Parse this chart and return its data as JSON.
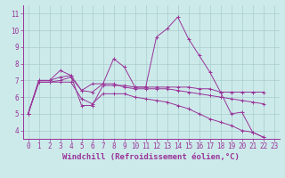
{
  "xlabel": "Windchill (Refroidissement éolien,°C)",
  "background_color": "#cceaea",
  "line_color": "#993399",
  "xlim": [
    -0.5,
    23.5
  ],
  "ylim": [
    3.5,
    11.5
  ],
  "xticks": [
    0,
    1,
    2,
    3,
    4,
    5,
    6,
    7,
    8,
    9,
    10,
    11,
    12,
    13,
    14,
    15,
    16,
    17,
    18,
    19,
    20,
    21,
    22,
    23
  ],
  "yticks": [
    4,
    5,
    6,
    7,
    8,
    9,
    10,
    11
  ],
  "series": [
    [
      5.0,
      7.0,
      7.0,
      7.6,
      7.3,
      6.4,
      6.3,
      6.8,
      8.3,
      7.8,
      6.6,
      6.6,
      9.6,
      10.1,
      10.8,
      9.5,
      8.5,
      7.5,
      6.3,
      5.0,
      5.1,
      3.9,
      3.6
    ],
    [
      5.0,
      7.0,
      7.0,
      7.2,
      7.3,
      5.5,
      5.5,
      6.7,
      6.7,
      6.7,
      6.6,
      6.6,
      6.6,
      6.6,
      6.6,
      6.6,
      6.5,
      6.5,
      6.3,
      6.3,
      6.3,
      6.3,
      6.3
    ],
    [
      5.0,
      6.9,
      6.9,
      7.0,
      7.2,
      6.4,
      6.8,
      6.8,
      6.8,
      6.6,
      6.5,
      6.5,
      6.5,
      6.5,
      6.4,
      6.3,
      6.2,
      6.1,
      6.0,
      5.9,
      5.8,
      5.7,
      5.6
    ],
    [
      5.0,
      6.9,
      6.9,
      6.9,
      6.9,
      5.9,
      5.6,
      6.2,
      6.2,
      6.2,
      6.0,
      5.9,
      5.8,
      5.7,
      5.5,
      5.3,
      5.0,
      4.7,
      4.5,
      4.3,
      4.0,
      3.9,
      3.6
    ]
  ],
  "grid_color": "#aacccc",
  "tick_fontsize": 5.5,
  "xlabel_fontsize": 6.5,
  "marker": "+"
}
